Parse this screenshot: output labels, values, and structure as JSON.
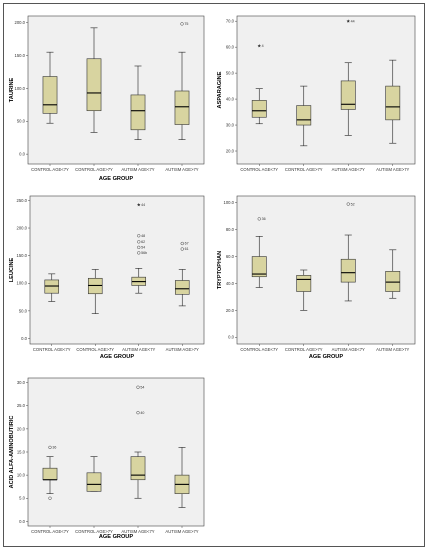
{
  "chart_data": [
    {
      "type": "boxplot",
      "xlabel": "AGE GROUP",
      "ylabel": "TAURINE",
      "categories": [
        "CONTROL AGE<7Y",
        "CONTROL AGE>7Y",
        "AUTISM AGE<7Y",
        "AUTISM AGE>7Y"
      ],
      "yticks": [
        "0.0",
        "50.0",
        "100.0",
        "150.0",
        "200.0"
      ],
      "ylim": [
        -15,
        210
      ],
      "boxes": [
        {
          "whisker_low": 47,
          "q1": 62,
          "median": 75,
          "q3": 118,
          "whisker_high": 155
        },
        {
          "whisker_low": 33,
          "q1": 66,
          "median": 93,
          "q3": 145,
          "whisker_high": 192
        },
        {
          "whisker_low": 22,
          "q1": 37,
          "median": 66,
          "q3": 90,
          "whisker_high": 134
        },
        {
          "whisker_low": 22,
          "q1": 45,
          "median": 72,
          "q3": 96,
          "whisker_high": 155
        }
      ],
      "outliers": [
        {
          "category_index": 3,
          "value": 198,
          "label": "75",
          "symbol": "circle"
        }
      ]
    },
    {
      "type": "boxplot",
      "xlabel": "",
      "ylabel": "ASPARAGINE",
      "categories": [
        "CONTROL AGE<7Y",
        "CONTROL AGE>7Y",
        "AUTISM AGE<7Y",
        "AUTISM AGE>7Y"
      ],
      "yticks": [
        "20.0",
        "30.0",
        "40.0",
        "50.0",
        "60.0",
        "70.0"
      ],
      "ylim": [
        15,
        72
      ],
      "boxes": [
        {
          "whisker_low": 30.5,
          "q1": 33,
          "median": 35.5,
          "q3": 39.5,
          "whisker_high": 44
        },
        {
          "whisker_low": 22,
          "q1": 30,
          "median": 32,
          "q3": 37.5,
          "whisker_high": 45
        },
        {
          "whisker_low": 26,
          "q1": 36,
          "median": 38,
          "q3": 47,
          "whisker_high": 54
        },
        {
          "whisker_low": 23,
          "q1": 32,
          "median": 37,
          "q3": 45,
          "whisker_high": 55
        }
      ],
      "outliers": [
        {
          "category_index": 0,
          "value": 60.5,
          "label": "4",
          "symbol": "star"
        },
        {
          "category_index": 2,
          "value": 70,
          "label": "44",
          "symbol": "star"
        }
      ]
    },
    {
      "type": "boxplot",
      "xlabel": "AGE GROUP",
      "ylabel": "LEUCINE",
      "categories": [
        "CONTROL AGE<7Y",
        "CONTROL AGE>7Y",
        "AUTISM AGE<7Y",
        "AUTISM AGE>7Y"
      ],
      "yticks": [
        "0.0",
        "50.0",
        "100.0",
        "150.0",
        "200.0",
        "250.0"
      ],
      "ylim": [
        -10,
        258
      ],
      "boxes": [
        {
          "whisker_low": 67,
          "q1": 82,
          "median": 95,
          "q3": 106,
          "whisker_high": 117
        },
        {
          "whisker_low": 45,
          "q1": 81,
          "median": 96,
          "q3": 109,
          "whisker_high": 125
        },
        {
          "whisker_low": 82,
          "q1": 96,
          "median": 103,
          "q3": 111,
          "whisker_high": 127
        },
        {
          "whisker_low": 59,
          "q1": 80,
          "median": 90,
          "q3": 105,
          "whisker_high": 125
        }
      ],
      "outliers": [
        {
          "category_index": 2,
          "value": 242,
          "label": "44",
          "symbol": "star"
        },
        {
          "category_index": 2,
          "value": 186,
          "label": "48",
          "symbol": "circle"
        },
        {
          "category_index": 2,
          "value": 175,
          "label": "62",
          "symbol": "circle"
        },
        {
          "category_index": 2,
          "value": 165,
          "label": "54",
          "symbol": "circle"
        },
        {
          "category_index": 2,
          "value": 155,
          "label": "56b",
          "symbol": "circle"
        },
        {
          "category_index": 3,
          "value": 172,
          "label": "67",
          "symbol": "circle"
        },
        {
          "category_index": 3,
          "value": 162,
          "label": "61",
          "symbol": "circle"
        }
      ]
    },
    {
      "type": "boxplot",
      "xlabel": "AGE GROUP",
      "ylabel": "TRYPTOPHAN",
      "categories": [
        "CONTROL AGE<7Y",
        "CONTROL AGE>7Y",
        "AUTISM AGE<7Y",
        "AUTISM AGE>7Y"
      ],
      "yticks": [
        "0.0",
        "20.0",
        "40.0",
        "60.0",
        "80.0",
        "100.0"
      ],
      "ylim": [
        -5,
        105
      ],
      "boxes": [
        {
          "whisker_low": 37,
          "q1": 45,
          "median": 47,
          "q3": 60,
          "whisker_high": 75
        },
        {
          "whisker_low": 20,
          "q1": 34,
          "median": 43,
          "q3": 46,
          "whisker_high": 50
        },
        {
          "whisker_low": 27,
          "q1": 41,
          "median": 48,
          "q3": 58,
          "whisker_high": 76
        },
        {
          "whisker_low": 29,
          "q1": 34,
          "median": 41,
          "q3": 49,
          "whisker_high": 65
        }
      ],
      "outliers": [
        {
          "category_index": 0,
          "value": 88,
          "label": "36",
          "symbol": "circle"
        },
        {
          "category_index": 2,
          "value": 99,
          "label": "52",
          "symbol": "circle"
        }
      ]
    },
    {
      "type": "boxplot",
      "xlabel": "AGE GROUP",
      "ylabel": "ACID ALFA-AMINOBUTIRIC",
      "categories": [
        "CONTROL AGE<7Y",
        "CONTROL AGE>7Y",
        "AUTISM AGE<7Y",
        "AUTISM AGE>7Y"
      ],
      "yticks": [
        "0.0",
        "5.0",
        "10.0",
        "15.0",
        "20.0",
        "25.0",
        "30.0"
      ],
      "ylim": [
        -1,
        31
      ],
      "boxes": [
        {
          "whisker_low": 6,
          "q1": 9,
          "median": 9,
          "q3": 11.5,
          "whisker_high": 14
        },
        {
          "whisker_low": 6.5,
          "q1": 6.5,
          "median": 8,
          "q3": 10.5,
          "whisker_high": 14
        },
        {
          "whisker_low": 5,
          "q1": 9,
          "median": 10,
          "q3": 14,
          "whisker_high": 15
        },
        {
          "whisker_low": 3,
          "q1": 6,
          "median": 8,
          "q3": 10,
          "whisker_high": 16
        }
      ],
      "outliers": [
        {
          "category_index": 0,
          "value": 16,
          "label": "36",
          "symbol": "circle"
        },
        {
          "category_index": 0,
          "value": 5,
          "label": "",
          "symbol": "circle"
        },
        {
          "category_index": 2,
          "value": 29,
          "label": "54",
          "symbol": "circle"
        },
        {
          "category_index": 2,
          "value": 23.5,
          "label": "40",
          "symbol": "circle"
        }
      ]
    }
  ]
}
